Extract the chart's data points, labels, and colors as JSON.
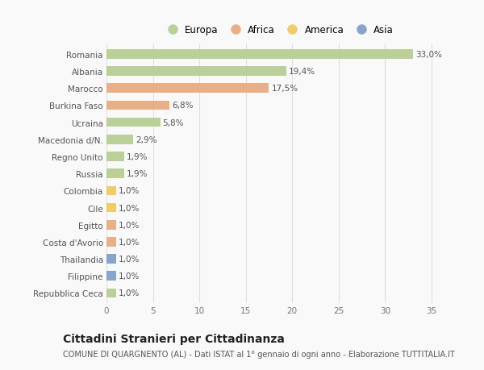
{
  "categories": [
    "Repubblica Ceca",
    "Filippine",
    "Thailandia",
    "Costa d'Avorio",
    "Egitto",
    "Cile",
    "Colombia",
    "Russia",
    "Regno Unito",
    "Macedonia d/N.",
    "Ucraina",
    "Burkina Faso",
    "Marocco",
    "Albania",
    "Romania"
  ],
  "values": [
    1.0,
    1.0,
    1.0,
    1.0,
    1.0,
    1.0,
    1.0,
    1.9,
    1.9,
    2.9,
    5.8,
    6.8,
    17.5,
    19.4,
    33.0
  ],
  "colors": [
    "#b5cc8e",
    "#7b9bc8",
    "#7b9bc8",
    "#e8a87c",
    "#e8a87c",
    "#f0c75a",
    "#f0c75a",
    "#b5cc8e",
    "#b5cc8e",
    "#b5cc8e",
    "#b5cc8e",
    "#e8a87c",
    "#e8a87c",
    "#b5cc8e",
    "#b5cc8e"
  ],
  "labels": [
    "1,0%",
    "1,0%",
    "1,0%",
    "1,0%",
    "1,0%",
    "1,0%",
    "1,0%",
    "1,9%",
    "1,9%",
    "2,9%",
    "5,8%",
    "6,8%",
    "17,5%",
    "19,4%",
    "33,0%"
  ],
  "legend": {
    "Europa": "#b5cc8e",
    "Africa": "#e8a87c",
    "America": "#f0c75a",
    "Asia": "#7b9bc8"
  },
  "title": "Cittadini Stranieri per Cittadinanza",
  "subtitle": "COMUNE DI QUARGNENTO (AL) - Dati ISTAT al 1° gennaio di ogni anno - Elaborazione TUTTITALIA.IT",
  "xlim": [
    0,
    37
  ],
  "xticks": [
    0,
    5,
    10,
    15,
    20,
    25,
    30,
    35
  ],
  "background_color": "#f9f9f9",
  "plot_bg_color": "#f9f9f9",
  "grid_color": "#e0e0e0",
  "bar_height": 0.55,
  "title_fontsize": 10,
  "subtitle_fontsize": 7,
  "label_fontsize": 7.5,
  "tick_fontsize": 7.5,
  "legend_fontsize": 8.5
}
